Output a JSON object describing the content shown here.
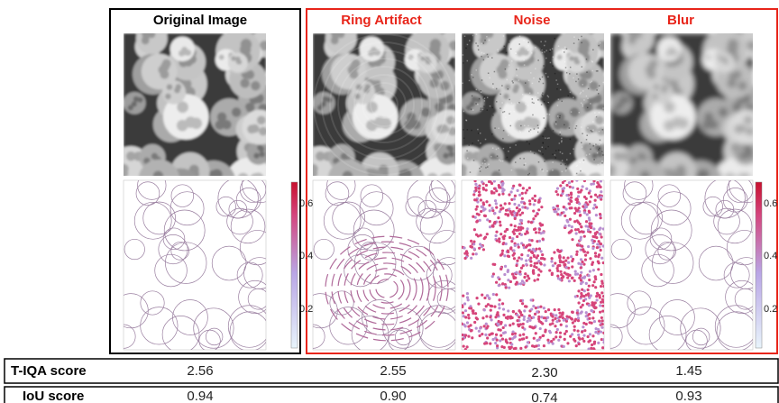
{
  "columns": [
    {
      "title": "Original Image"
    },
    {
      "title": "Ring Artifact"
    },
    {
      "title": "Noise"
    },
    {
      "title": "Blur"
    }
  ],
  "colorbars": [
    {
      "ticks": [
        "0.6",
        "0.4",
        "0.2"
      ]
    },
    {
      "ticks": [
        "0.6",
        "0.4",
        "0.2"
      ]
    }
  ],
  "table": {
    "rows": [
      {
        "label": "T-IQA score",
        "values": [
          "2.56",
          "2.55",
          "2.30",
          "1.45"
        ]
      },
      {
        "label": "IoU score",
        "values": [
          "0.94",
          "0.90",
          "0.74",
          "0.93"
        ]
      }
    ]
  }
}
